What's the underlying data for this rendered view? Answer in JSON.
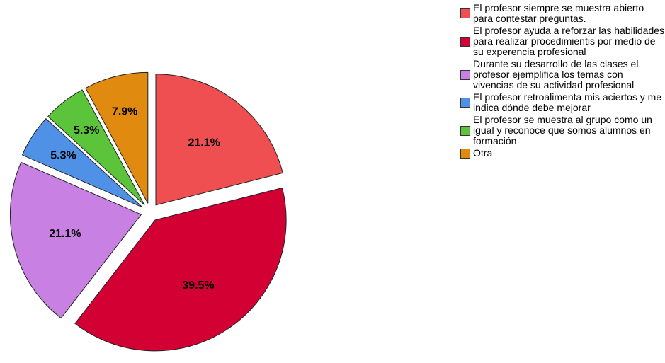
{
  "chart_data": {
    "type": "pie",
    "categories": [
      "El profesor siempre se muestra abierto para contestar preguntas.",
      "El profesor ayuda a reforzar las habilidades para realizar procedimientis por medio de su experencia profesional",
      "Durante su desarrollo de las clases el profesor ejemplifica los temas con vivencias de su actividad profesional",
      "El profesor retroalimenta mis aciertos y me indica dónde debe mejorar",
      "El profesor se muestra al grupo como un igual y reconoce que somos alumnos en formación",
      "Otra"
    ],
    "values": [
      21.1,
      39.5,
      21.1,
      5.3,
      5.3,
      7.9
    ],
    "value_labels": [
      "21.1%",
      "39.5%",
      "21.1%",
      "5.3%",
      "5.3%",
      "7.9%"
    ],
    "colors": [
      "#ef4f50",
      "#d20033",
      "#c880e3",
      "#4f91e6",
      "#5cc43b",
      "#e08a10"
    ],
    "legend": "right"
  }
}
